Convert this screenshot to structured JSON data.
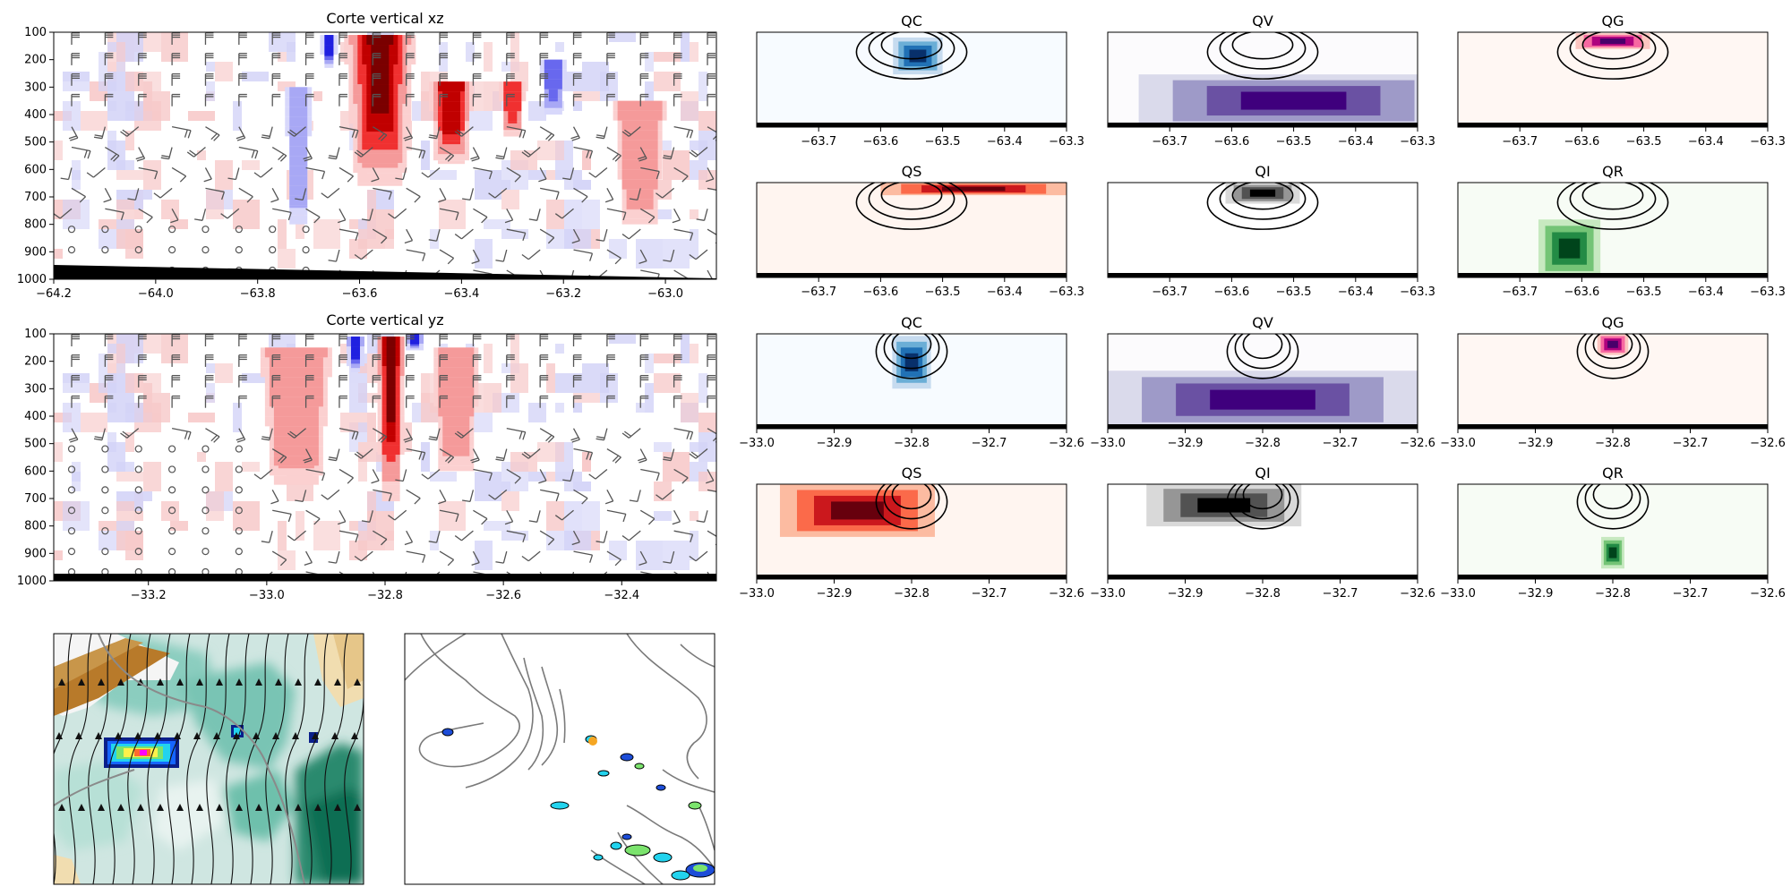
{
  "chart_data": [
    {
      "type": "heatmap",
      "title": "Corte vertical xz",
      "x_ticks": [
        "−64.2",
        "−64.0",
        "−63.8",
        "−63.6",
        "−63.4",
        "−63.2",
        "−63.0"
      ],
      "x_tick_values": [
        -64.2,
        -64.0,
        -63.8,
        -63.6,
        -63.4,
        -63.2,
        -63.0
      ],
      "xlim": [
        -64.2,
        -62.9
      ],
      "y_ticks": [
        "100",
        "200",
        "300",
        "400",
        "500",
        "600",
        "700",
        "800",
        "900",
        "1000"
      ],
      "y_tick_values": [
        100,
        200,
        300,
        400,
        500,
        600,
        700,
        800,
        900,
        1000
      ],
      "ylim": [
        1000,
        100
      ],
      "colormap": "bwr",
      "overlay": "wind barbs",
      "features": [
        {
          "kind": "positive",
          "x": -63.56,
          "y": 110,
          "width": 0.14,
          "height": 550,
          "intensity": 1.0
        },
        {
          "kind": "positive",
          "x": -63.42,
          "y": 280,
          "width": 0.09,
          "height": 300,
          "intensity": 0.85
        },
        {
          "kind": "positive",
          "x": -63.3,
          "y": 280,
          "width": 0.05,
          "height": 200,
          "intensity": 0.7
        },
        {
          "kind": "negative",
          "x": -63.66,
          "y": 110,
          "width": 0.03,
          "height": 120,
          "intensity": 0.9
        },
        {
          "kind": "negative",
          "x": -63.22,
          "y": 200,
          "width": 0.05,
          "height": 200,
          "intensity": 0.7
        },
        {
          "kind": "negative",
          "x": -63.72,
          "y": 300,
          "width": 0.05,
          "height": 500,
          "intensity": 0.45
        },
        {
          "kind": "positive",
          "x": -63.05,
          "y": 350,
          "width": 0.1,
          "height": 450,
          "intensity": 0.35
        }
      ]
    },
    {
      "type": "heatmap",
      "title": "Corte vertical yz",
      "x_ticks": [
        "−33.2",
        "−33.0",
        "−32.8",
        "−32.6",
        "−32.4"
      ],
      "x_tick_values": [
        -33.2,
        -33.0,
        -32.8,
        -32.6,
        -32.4
      ],
      "xlim": [
        -33.36,
        -32.24
      ],
      "y_ticks": [
        "100",
        "200",
        "300",
        "400",
        "500",
        "600",
        "700",
        "800",
        "900",
        "1000"
      ],
      "y_tick_values": [
        100,
        200,
        300,
        400,
        500,
        600,
        700,
        800,
        900,
        1000
      ],
      "ylim": [
        1000,
        100
      ],
      "colormap": "bwr",
      "overlay": "wind barbs",
      "features": [
        {
          "kind": "positive",
          "x": -32.79,
          "y": 110,
          "width": 0.05,
          "height": 600,
          "intensity": 1.0
        },
        {
          "kind": "negative",
          "x": -32.85,
          "y": 110,
          "width": 0.03,
          "height": 130,
          "intensity": 0.9
        },
        {
          "kind": "negative",
          "x": -32.75,
          "y": 100,
          "width": 0.03,
          "height": 60,
          "intensity": 0.9
        },
        {
          "kind": "positive",
          "x": -32.95,
          "y": 150,
          "width": 0.12,
          "height": 500,
          "intensity": 0.35
        },
        {
          "kind": "positive",
          "x": -32.68,
          "y": 150,
          "width": 0.08,
          "height": 450,
          "intensity": 0.3
        }
      ]
    },
    {
      "type": "heatmap",
      "panels_xz": [
        {
          "title": "QC",
          "colormap": "Blues",
          "feature": {
            "x": -63.54,
            "y": 150,
            "width": 0.08,
            "height": 350
          }
        },
        {
          "title": "QV",
          "colormap": "Purples",
          "feature": {
            "x": -63.5,
            "y": 500,
            "width": 0.5,
            "height": 500
          }
        },
        {
          "title": "QG",
          "colormap": "RdPu",
          "feature": {
            "x": -63.55,
            "y": 110,
            "width": 0.12,
            "height": 150
          }
        },
        {
          "title": "QS",
          "colormap": "Reds",
          "feature": {
            "x": -63.45,
            "y": 100,
            "width": 0.3,
            "height": 120
          }
        },
        {
          "title": "QI",
          "colormap": "Greys",
          "feature": {
            "x": -63.55,
            "y": 100,
            "width": 0.12,
            "height": 200
          }
        },
        {
          "title": "QR",
          "colormap": "Greens",
          "feature": {
            "x": -63.62,
            "y": 450,
            "width": 0.1,
            "height": 550
          }
        }
      ],
      "x_ticks_xz": [
        "−63.7",
        "−63.6",
        "−63.5",
        "−63.4",
        "−63.3"
      ],
      "x_tick_values_xz": [
        -63.7,
        -63.6,
        -63.5,
        -63.4,
        -63.3
      ],
      "xlim_xz": [
        -63.8,
        -63.3
      ],
      "panels_yz": [
        {
          "title": "QC",
          "colormap": "Blues",
          "feature": {
            "x": -32.8,
            "y": 120,
            "width": 0.05,
            "height": 500
          }
        },
        {
          "title": "QV",
          "colormap": "Purples",
          "feature": {
            "x": -32.8,
            "y": 450,
            "width": 0.4,
            "height": 550
          }
        },
        {
          "title": "QG",
          "colormap": "RdPu",
          "feature": {
            "x": -32.8,
            "y": 100,
            "width": 0.04,
            "height": 200
          }
        },
        {
          "title": "QS",
          "colormap": "Reds",
          "feature": {
            "x": -32.87,
            "y": 100,
            "width": 0.2,
            "height": 500
          }
        },
        {
          "title": "QI",
          "colormap": "Greys",
          "feature": {
            "x": -32.85,
            "y": 100,
            "width": 0.2,
            "height": 400
          }
        },
        {
          "title": "QR",
          "colormap": "Greens",
          "feature": {
            "x": -32.8,
            "y": 600,
            "width": 0.03,
            "height": 300
          }
        }
      ],
      "x_ticks_yz": [
        "−33.0",
        "−32.9",
        "−32.8",
        "−32.7",
        "−32.6"
      ],
      "x_tick_values_yz": [
        -33.0,
        -32.9,
        -32.8,
        -32.7,
        -32.6
      ],
      "xlim_yz": [
        -33.0,
        -32.6
      ],
      "ylim": [
        1000,
        100
      ],
      "contour_center_xz": [
        -63.55,
        220
      ],
      "contour_center_yz": [
        -32.8,
        200
      ]
    }
  ],
  "maps": {
    "left": {
      "background": "#d6ebe6",
      "overlay": "streamlines",
      "cell_colormap": "jet"
    },
    "right": {
      "background": "#ffffff",
      "overlay": "coastlines",
      "marker_color": "#f5a623"
    }
  }
}
